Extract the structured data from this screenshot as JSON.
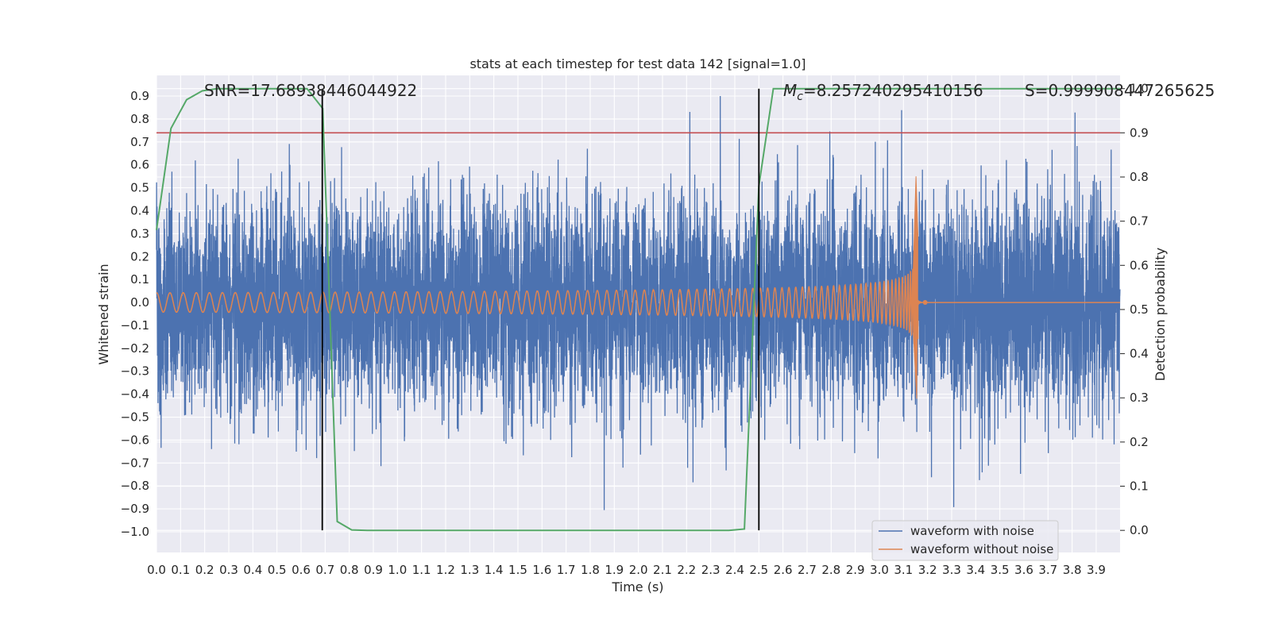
{
  "chart_data": {
    "type": "line",
    "title": "stats at each timestep for test data 142 [signal=1.0]",
    "xlabel": "Time (s)",
    "ylabel": "Whitened strain",
    "y2label": "Detection probability",
    "xlim": [
      0.0,
      3.999
    ],
    "ylim": [
      -1.09,
      0.99
    ],
    "y2lim": [
      -0.05,
      1.03
    ],
    "x_ticks": [
      0.0,
      0.1,
      0.2,
      0.3,
      0.4,
      0.5,
      0.6,
      0.7,
      0.8,
      0.9,
      1.0,
      1.1,
      1.2,
      1.3,
      1.4,
      1.5,
      1.6,
      1.7,
      1.8,
      1.9,
      2.0,
      2.1,
      2.2,
      2.3,
      2.4,
      2.5,
      2.6,
      2.7,
      2.8,
      2.9,
      3.0,
      3.1,
      3.2,
      3.3,
      3.4,
      3.5,
      3.6,
      3.7,
      3.8,
      3.9
    ],
    "y_ticks": [
      0.9,
      0.8,
      0.7,
      0.6,
      0.5,
      0.4,
      0.3,
      0.2,
      0.1,
      0.0,
      -0.1,
      -0.2,
      -0.3,
      -0.4,
      -0.5,
      -0.6,
      -0.7,
      -0.8,
      -0.9,
      -1.0
    ],
    "y2_ticks": [
      1.0,
      0.9,
      0.8,
      0.7,
      0.6,
      0.5,
      0.4,
      0.3,
      0.2,
      0.1,
      0.0
    ],
    "grid": true,
    "legend_position": "lower-right",
    "annotations": {
      "snr": "SNR=17.68938446044922",
      "mc_symbol": "M",
      "mc_subscript": "c",
      "mc_value": "=8.257240295410156",
      "s": "S=0.999908447265625"
    },
    "threshold_probability": 0.9,
    "vertical_lines_x": [
      0.688,
      2.5
    ],
    "series": [
      {
        "name": "waveform with noise",
        "color": "#4c72b0",
        "axis": "left",
        "kind": "noise",
        "sample_rate_hz": 2048,
        "std": 0.22,
        "approx_range": [
          -1.0,
          0.9
        ]
      },
      {
        "name": "waveform without noise",
        "color": "#dd8452",
        "axis": "left",
        "kind": "chirp",
        "merger_time_s": 3.16,
        "amplitude_start": 0.042,
        "frequency_start_hz": 18,
        "peak_amplitude": 0.55,
        "min_amplitude": -0.42,
        "ringdown_marker_x": 3.19
      },
      {
        "axis": "right",
        "color": "#55a868",
        "x": [
          0.0,
          0.06,
          0.125,
          0.19,
          0.25,
          0.31,
          0.375,
          0.44,
          0.5,
          0.56,
          0.625,
          0.69,
          0.75,
          0.81,
          0.875,
          0.94,
          1.0,
          1.5,
          2.0,
          2.375,
          2.44,
          2.5,
          2.56,
          2.625,
          2.69,
          3.0,
          3.5,
          3.999
        ],
        "y": [
          0.68,
          0.91,
          0.975,
          0.995,
          1.0,
          1.0,
          1.0,
          1.0,
          1.0,
          1.0,
          1.0,
          0.955,
          0.02,
          0.001,
          0.0,
          0.0,
          0.0,
          0.0,
          0.0,
          0.0,
          0.003,
          0.78,
          1.0,
          1.0,
          1.0,
          1.0,
          1.0,
          1.0
        ]
      },
      {
        "axis": "right",
        "color": "#c44e52",
        "kind": "threshold",
        "y": 0.9
      }
    ]
  }
}
